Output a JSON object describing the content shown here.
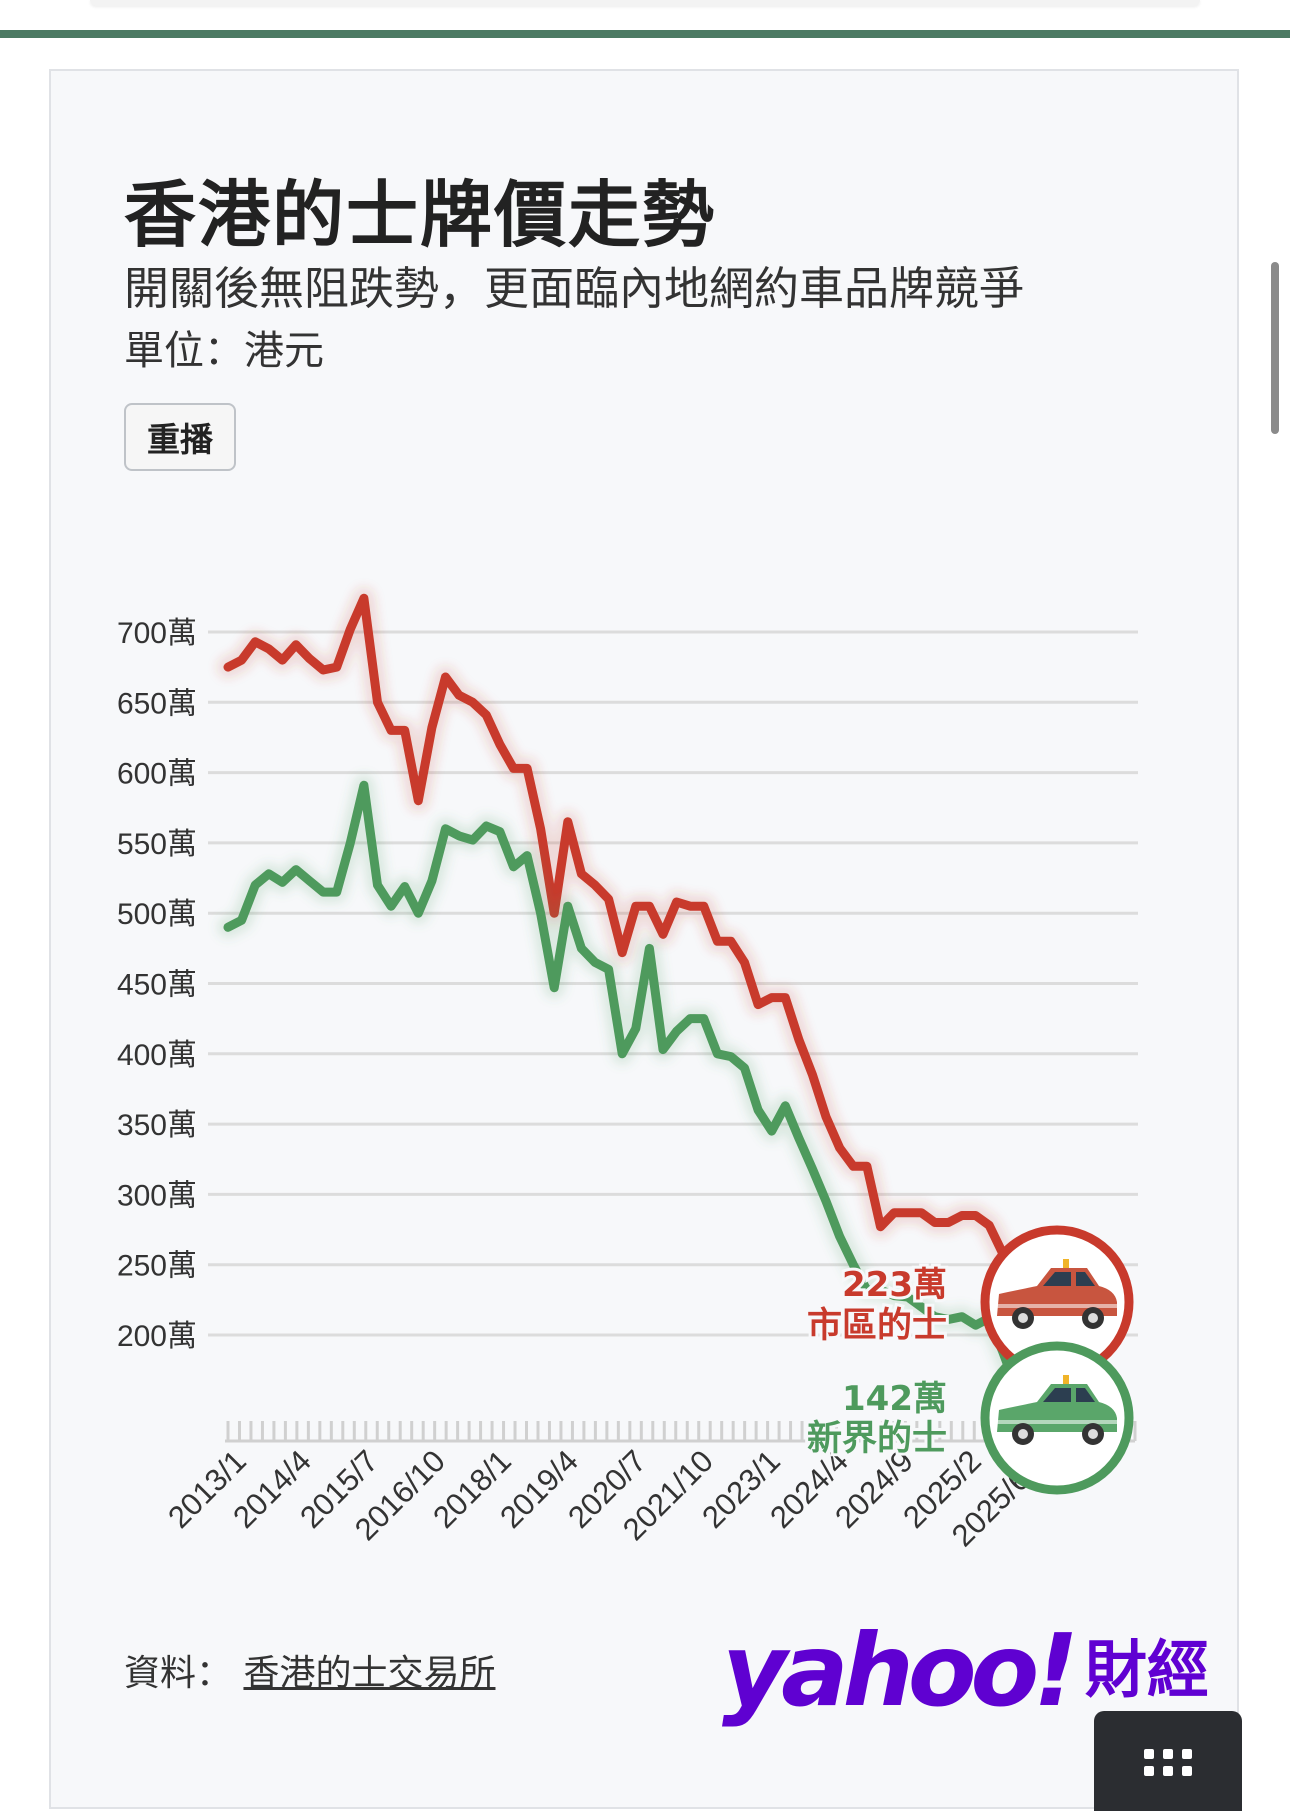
{
  "header": {
    "title": "香港的士牌價走勢",
    "subtitle": "開關後無阻跌勢，更面臨內地網約車品牌競爭",
    "unit": "單位：港元",
    "replay_label": "重播"
  },
  "footer": {
    "source_prefix": "資料：",
    "source_link": "香港的士交易所",
    "brand_wordmark": "yahoo!",
    "brand_suffix": "財經"
  },
  "colors": {
    "urban": "#c83a2c",
    "nt": "#4e9a5d",
    "grid": "#dcdcdc",
    "top_bar": "#4c7a63",
    "brand": "#5f01d1"
  },
  "icons": [
    "urban-taxi-icon",
    "nt-taxi-icon",
    "menu-grid-icon"
  ],
  "chart_data": {
    "type": "line",
    "title": "香港的士牌價走勢",
    "xlabel": "",
    "ylabel": "",
    "ylim": [
      130,
      740
    ],
    "y_ticks": [
      700,
      650,
      600,
      550,
      500,
      450,
      400,
      350,
      300,
      250,
      200
    ],
    "y_tick_labels": [
      "700萬",
      "650萬",
      "600萬",
      "550萬",
      "500萬",
      "450萬",
      "400萬",
      "350萬",
      "300萬",
      "250萬",
      "200萬"
    ],
    "x_tick_labels": [
      "2013/1",
      "2014/4",
      "2015/7",
      "2016/10",
      "2018/1",
      "2019/4",
      "2020/7",
      "2021/10",
      "2023/1",
      "2024/4",
      "2024/9",
      "2025/2",
      "2025/6/1"
    ],
    "grid": true,
    "series": [
      {
        "name": "市區的士",
        "end_label": "223萬",
        "values": [
          675,
          680,
          693,
          688,
          680,
          691,
          681,
          673,
          675,
          702,
          724,
          650,
          630,
          630,
          580,
          632,
          668,
          655,
          650,
          641,
          620,
          603,
          603,
          560,
          500,
          565,
          528,
          520,
          510,
          472,
          505,
          505,
          485,
          508,
          505,
          505,
          480,
          480,
          465,
          435,
          440,
          440,
          410,
          385,
          355,
          333,
          320,
          320,
          277,
          287,
          287,
          287,
          280,
          280,
          285,
          285,
          278,
          258,
          240,
          223
        ]
      },
      {
        "name": "新界的士",
        "end_label": "142萬",
        "values": [
          490,
          495,
          520,
          528,
          522,
          531,
          523,
          515,
          515,
          550,
          591,
          520,
          505,
          519,
          500,
          523,
          560,
          555,
          552,
          562,
          558,
          533,
          541,
          500,
          447,
          505,
          475,
          465,
          460,
          400,
          418,
          475,
          403,
          416,
          425,
          425,
          400,
          398,
          390,
          360,
          345,
          363,
          340,
          318,
          295,
          270,
          250,
          232,
          232,
          228,
          227,
          220,
          213,
          211,
          213,
          207,
          212,
          188,
          162,
          142
        ]
      }
    ]
  }
}
